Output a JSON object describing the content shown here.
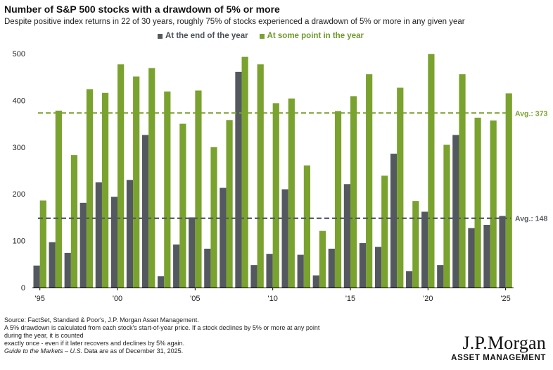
{
  "title": "Number of S&P 500 stocks with a drawdown of 5% or more",
  "subtitle": "Despite positive index returns in 22 of 30 years, roughly 75% of stocks experienced a drawdown of 5% or more in any given year",
  "colors": {
    "gray": "#54585f",
    "green": "#7aa22f",
    "axis": "#000000",
    "text": "#222222"
  },
  "chart_data": {
    "type": "bar",
    "title": "Number of S&P 500 stocks with a drawdown of 5% or more",
    "xlabel": "",
    "ylabel": "",
    "ylim": [
      0,
      500
    ],
    "yticks": [
      0,
      100,
      200,
      300,
      400,
      500
    ],
    "grid": false,
    "legend_position": "top",
    "categories": [
      "1995",
      "1996",
      "1997",
      "1998",
      "1999",
      "2000",
      "2001",
      "2002",
      "2003",
      "2004",
      "2005",
      "2006",
      "2007",
      "2008",
      "2009",
      "2010",
      "2011",
      "2012",
      "2013",
      "2014",
      "2015",
      "2016",
      "2017",
      "2018",
      "2019",
      "2020",
      "2021",
      "2022",
      "2023",
      "2024",
      "2025"
    ],
    "x_tick_labels": [
      {
        "index": 0,
        "label": "'95"
      },
      {
        "index": 5,
        "label": "'00"
      },
      {
        "index": 10,
        "label": "'05"
      },
      {
        "index": 15,
        "label": "'10"
      },
      {
        "index": 20,
        "label": "'15"
      },
      {
        "index": 25,
        "label": "'20"
      },
      {
        "index": 30,
        "label": "'25"
      }
    ],
    "series": [
      {
        "name": "At the end of the year",
        "color": "#54585f",
        "values": [
          47,
          97,
          74,
          181,
          225,
          194,
          230,
          326,
          24,
          92,
          150,
          83,
          213,
          461,
          48,
          72,
          210,
          70,
          26,
          83,
          221,
          95,
          87,
          286,
          35,
          162,
          48,
          326,
          127,
          134,
          153
        ]
      },
      {
        "name": "At some point in the year",
        "color": "#7aa22f",
        "values": [
          186,
          378,
          283,
          424,
          416,
          477,
          451,
          469,
          419,
          350,
          421,
          300,
          358,
          493,
          477,
          394,
          404,
          261,
          121,
          377,
          409,
          456,
          239,
          427,
          185,
          499,
          305,
          456,
          363,
          357,
          415
        ]
      }
    ],
    "reference_lines": [
      {
        "name": "average-at-some-point",
        "value": 373,
        "label": "Avg.: 373",
        "color": "#7aa22f"
      },
      {
        "name": "average-end-of-year",
        "value": 148,
        "label": "Avg.: 148",
        "color": "#54585f"
      }
    ]
  },
  "footnotes": {
    "source": "Source: FactSet, Standard & Poor's, J.P. Morgan Asset Management.",
    "line2": "A 5% drawdown is calculated from each stock's start-of-year price. If a stock declines by 5% or more at any point during the year, it is counted",
    "line3": "exactly once - even if it later recovers and declines by 5% again.",
    "guide": "Guide to the Markets – U.S.",
    "as_of": " Data are as of December 31, 2025."
  },
  "logo": {
    "main": "J.P.Morgan",
    "sub": "ASSET MANAGEMENT"
  }
}
